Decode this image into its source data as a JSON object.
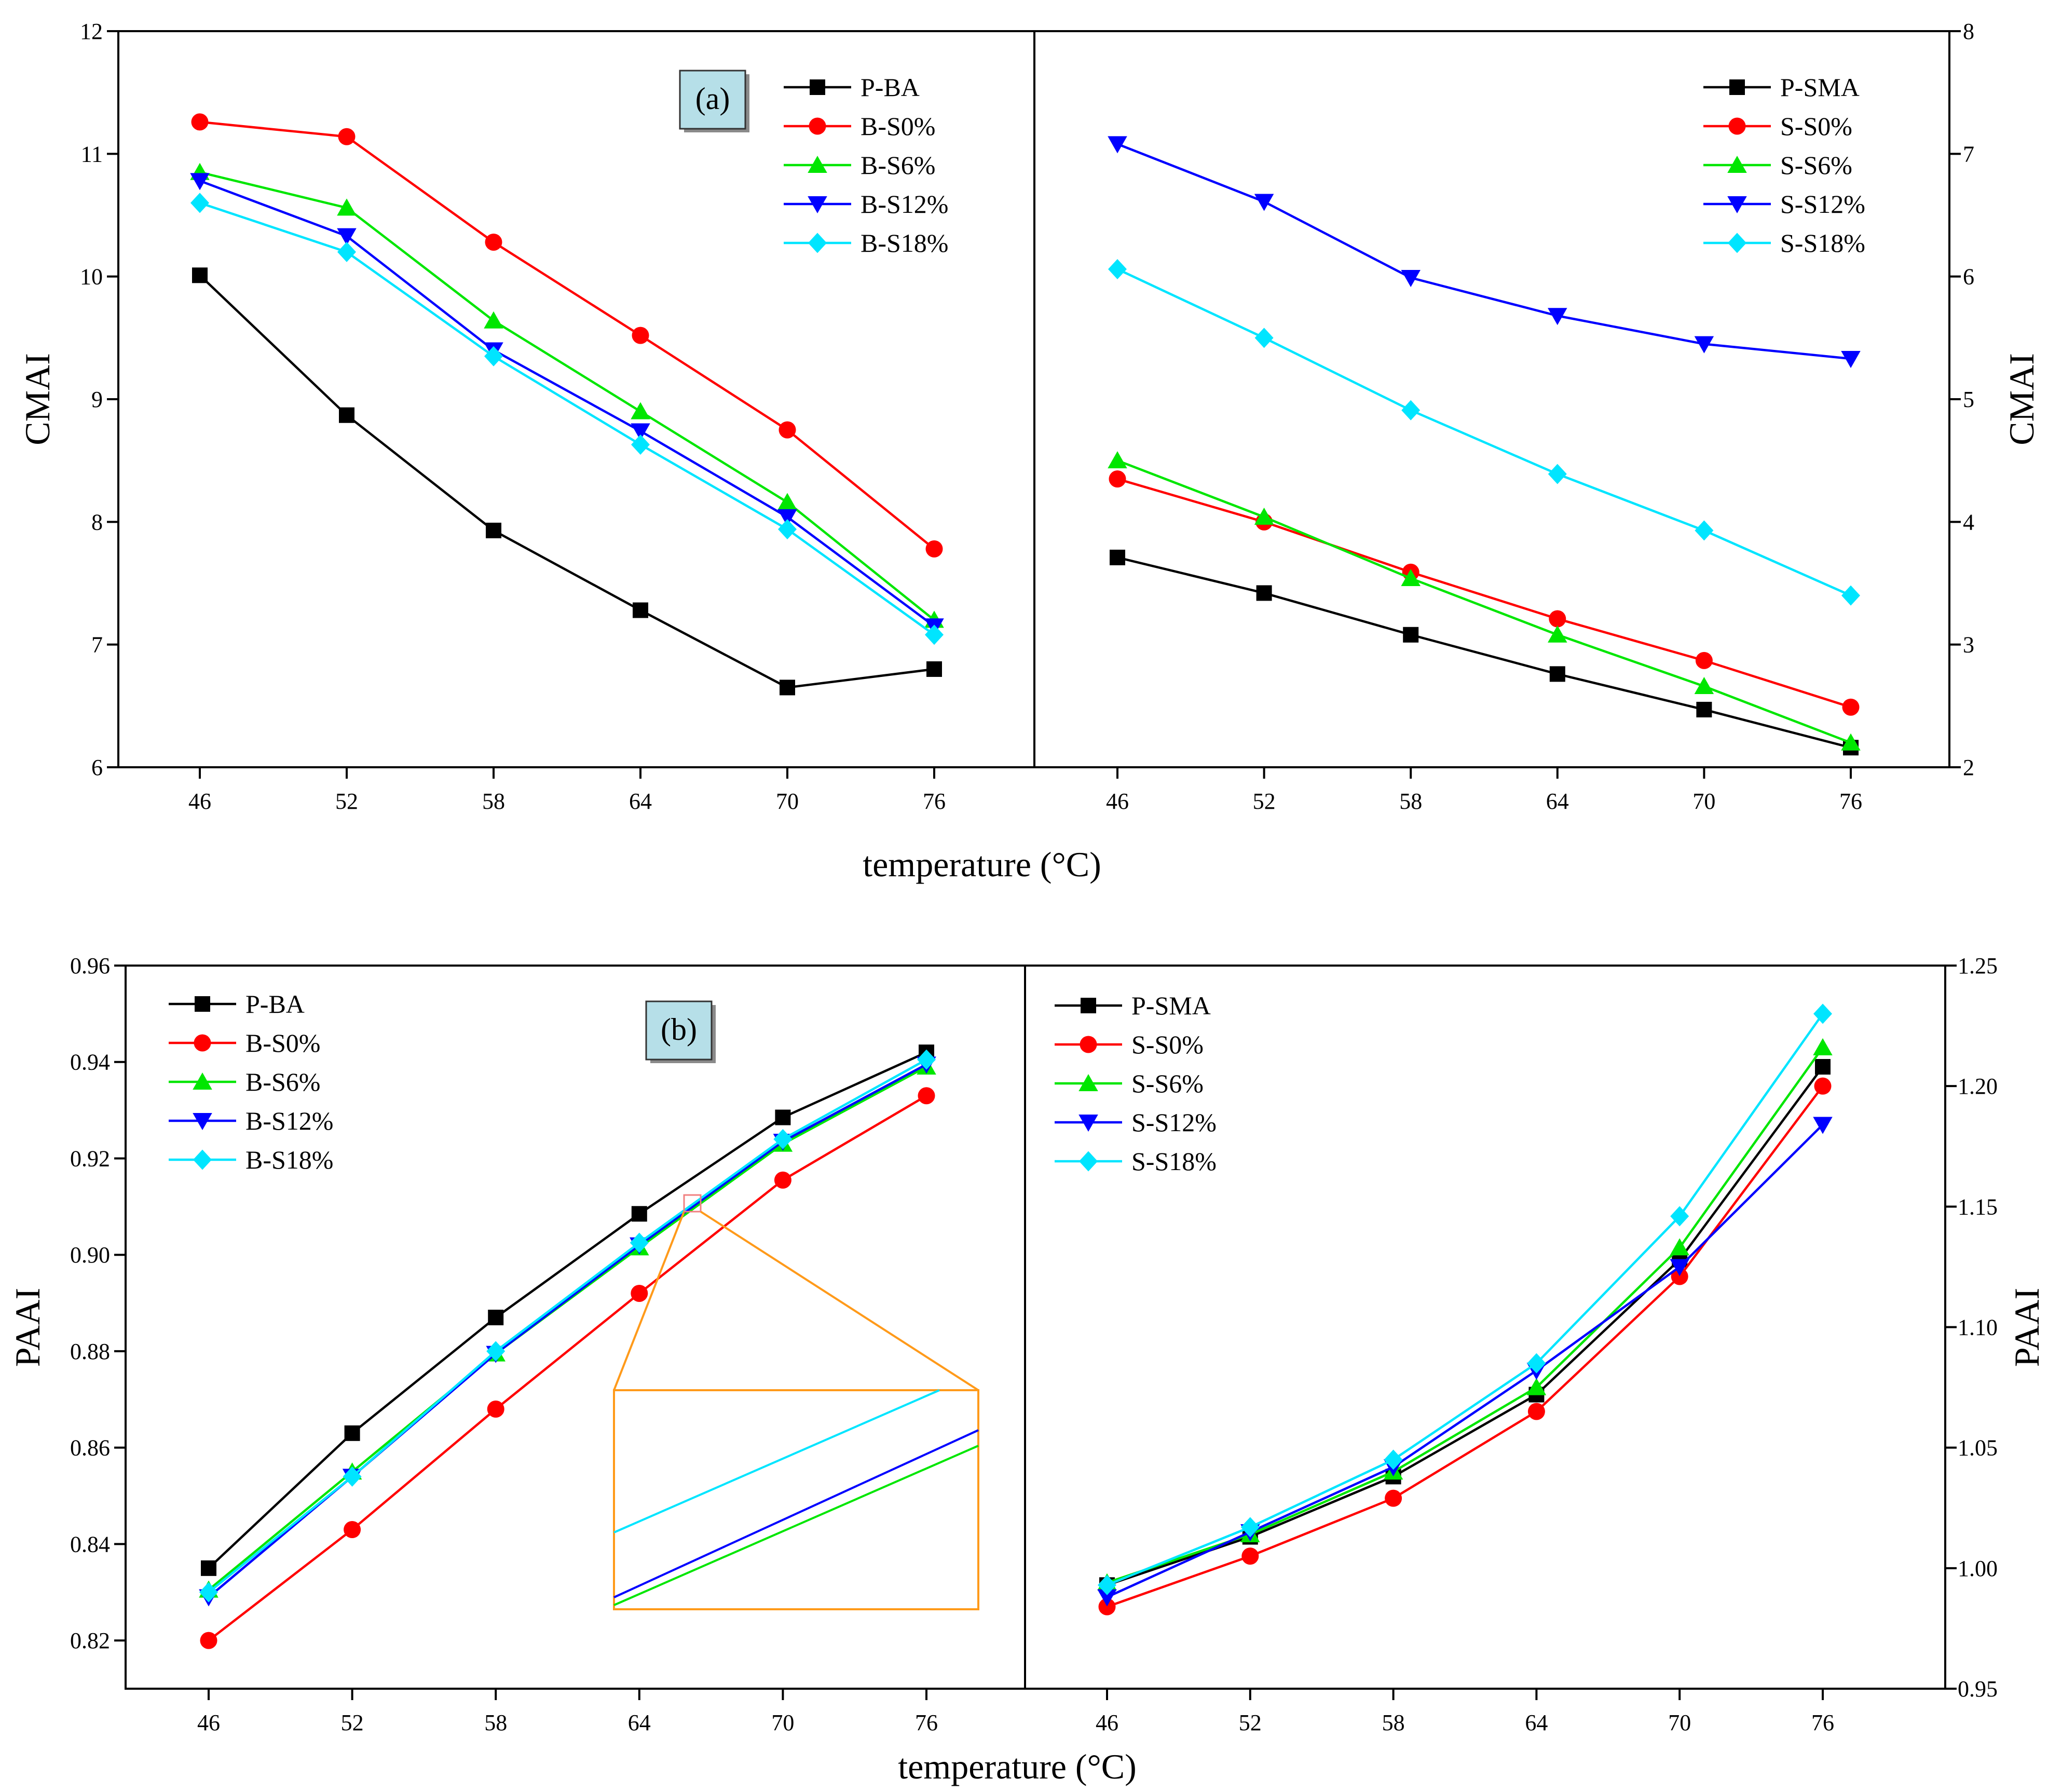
{
  "colors": {
    "P": "#000000",
    "S0": "#ff0000",
    "S6": "#00e600",
    "S12": "#0000ff",
    "S18": "#00e5ff",
    "zoom": "#ff9a1a",
    "label_box": "#b6dfe8"
  },
  "chart_data": [
    {
      "type": "line",
      "panel": "(a) left",
      "label": "(a)",
      "x": [
        46,
        52,
        58,
        64,
        70,
        76
      ],
      "xticks": [
        "46",
        "52",
        "58",
        "64",
        "70",
        "76"
      ],
      "xlabel": "temperature (°C)",
      "ylabel": "CMAI",
      "yaxis_side": "left",
      "ylim": [
        6,
        12
      ],
      "yticks": [
        "6",
        "7",
        "8",
        "9",
        "10",
        "11",
        "12"
      ],
      "legend_position": "top-right",
      "series": [
        {
          "key": "P",
          "name": "P-BA",
          "marker": "square",
          "values": [
            10.01,
            8.87,
            7.93,
            7.28,
            6.65,
            6.8
          ]
        },
        {
          "key": "S0",
          "name": "B-S0%",
          "marker": "circle",
          "values": [
            11.26,
            11.14,
            10.28,
            9.52,
            8.75,
            7.78
          ]
        },
        {
          "key": "S6",
          "name": "B-S6%",
          "marker": "triangle-up",
          "values": [
            10.85,
            10.56,
            9.64,
            8.9,
            8.16,
            7.2
          ]
        },
        {
          "key": "S12",
          "name": "B-S12%",
          "marker": "triangle-down",
          "values": [
            10.78,
            10.33,
            9.4,
            8.74,
            8.04,
            7.15
          ]
        },
        {
          "key": "S18",
          "name": "B-S18%",
          "marker": "diamond",
          "values": [
            10.6,
            10.2,
            9.35,
            8.63,
            7.94,
            7.08
          ]
        }
      ]
    },
    {
      "type": "line",
      "panel": "(a) right",
      "x": [
        46,
        52,
        58,
        64,
        70,
        76
      ],
      "xticks": [
        "46",
        "52",
        "58",
        "64",
        "70",
        "76"
      ],
      "xlabel": "temperature (°C)",
      "ylabel": "CMAI",
      "yaxis_side": "right",
      "ylim": [
        2,
        8
      ],
      "yticks": [
        "2",
        "3",
        "4",
        "5",
        "6",
        "7",
        "8"
      ],
      "legend_position": "top-right",
      "series": [
        {
          "key": "P",
          "name": "P-SMA",
          "marker": "square",
          "values": [
            3.71,
            3.42,
            3.08,
            2.76,
            2.47,
            2.16
          ]
        },
        {
          "key": "S0",
          "name": "S-S0%",
          "marker": "circle",
          "values": [
            4.35,
            4.0,
            3.59,
            3.21,
            2.87,
            2.49
          ]
        },
        {
          "key": "S6",
          "name": "S-S6%",
          "marker": "triangle-up",
          "values": [
            4.5,
            4.04,
            3.54,
            3.08,
            2.66,
            2.2
          ]
        },
        {
          "key": "S12",
          "name": "S-S12%",
          "marker": "triangle-down",
          "values": [
            7.08,
            6.61,
            5.99,
            5.68,
            5.45,
            5.33
          ]
        },
        {
          "key": "S18",
          "name": "S-S18%",
          "marker": "diamond",
          "values": [
            6.06,
            5.5,
            4.91,
            4.39,
            3.93,
            3.4
          ]
        }
      ]
    },
    {
      "type": "line",
      "panel": "(b) left",
      "label": "(b)",
      "x": [
        46,
        52,
        58,
        64,
        70,
        76
      ],
      "xticks": [
        "46",
        "52",
        "58",
        "64",
        "70",
        "76"
      ],
      "xlabel": "temperature (°C)",
      "ylabel": "PAAI",
      "yaxis_side": "left",
      "ylim": [
        0.81,
        0.96
      ],
      "yticks": [
        "0.82",
        "0.84",
        "0.86",
        "0.88",
        "0.90",
        "0.92",
        "0.94",
        "0.96"
      ],
      "legend_position": "top-left",
      "series": [
        {
          "key": "P",
          "name": "P-BA",
          "marker": "square",
          "values": [
            0.835,
            0.863,
            0.887,
            0.9085,
            0.9285,
            0.942
          ]
        },
        {
          "key": "S0",
          "name": "B-S0%",
          "marker": "circle",
          "values": [
            0.82,
            0.843,
            0.868,
            0.892,
            0.9155,
            0.933
          ]
        },
        {
          "key": "S6",
          "name": "B-S6%",
          "marker": "triangle-up",
          "values": [
            0.8305,
            0.855,
            0.8795,
            0.9015,
            0.923,
            0.939
          ]
        },
        {
          "key": "S12",
          "name": "B-S12%",
          "marker": "triangle-down",
          "values": [
            0.829,
            0.854,
            0.8795,
            0.902,
            0.9235,
            0.9395
          ]
        },
        {
          "key": "S18",
          "name": "B-S18%",
          "marker": "diamond",
          "values": [
            0.83,
            0.854,
            0.88,
            0.9025,
            0.924,
            0.9405
          ]
        }
      ],
      "annotation": "zoom inset of the B-S6%, B-S12% and B-S18% lines near 66 °C"
    },
    {
      "type": "line",
      "panel": "(b) right",
      "x": [
        46,
        52,
        58,
        64,
        70,
        76
      ],
      "xticks": [
        "46",
        "52",
        "58",
        "64",
        "70",
        "76"
      ],
      "xlabel": "temperature (°C)",
      "ylabel": "PAAI",
      "yaxis_side": "right",
      "ylim": [
        0.95,
        1.25
      ],
      "yticks": [
        "0.95",
        "1.00",
        "1.05",
        "1.10",
        "1.15",
        "1.20",
        "1.25"
      ],
      "legend_position": "top-left",
      "series": [
        {
          "key": "P",
          "name": "P-SMA",
          "marker": "square",
          "values": [
            0.993,
            1.013,
            1.038,
            1.072,
            1.128,
            1.208
          ]
        },
        {
          "key": "S0",
          "name": "S-S0%",
          "marker": "circle",
          "values": [
            0.984,
            1.005,
            1.029,
            1.065,
            1.121,
            1.2
          ]
        },
        {
          "key": "S6",
          "name": "S-S6%",
          "marker": "triangle-up",
          "values": [
            0.994,
            1.014,
            1.04,
            1.075,
            1.133,
            1.216
          ]
        },
        {
          "key": "S12",
          "name": "S-S12%",
          "marker": "triangle-down",
          "values": [
            0.988,
            1.015,
            1.042,
            1.082,
            1.125,
            1.184
          ]
        },
        {
          "key": "S18",
          "name": "S-S18%",
          "marker": "diamond",
          "values": [
            0.993,
            1.017,
            1.045,
            1.085,
            1.146,
            1.23
          ]
        }
      ]
    }
  ]
}
